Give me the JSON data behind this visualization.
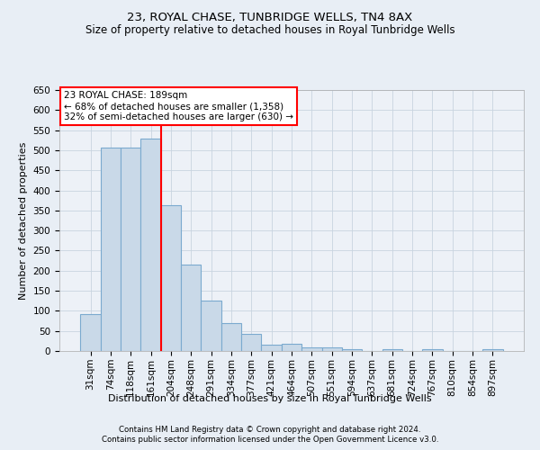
{
  "title": "23, ROYAL CHASE, TUNBRIDGE WELLS, TN4 8AX",
  "subtitle": "Size of property relative to detached houses in Royal Tunbridge Wells",
  "xlabel": "Distribution of detached houses by size in Royal Tunbridge Wells",
  "ylabel": "Number of detached properties",
  "footer_line1": "Contains HM Land Registry data © Crown copyright and database right 2024.",
  "footer_line2": "Contains public sector information licensed under the Open Government Licence v3.0.",
  "categories": [
    "31sqm",
    "74sqm",
    "118sqm",
    "161sqm",
    "204sqm",
    "248sqm",
    "291sqm",
    "334sqm",
    "377sqm",
    "421sqm",
    "464sqm",
    "507sqm",
    "551sqm",
    "594sqm",
    "637sqm",
    "681sqm",
    "724sqm",
    "767sqm",
    "810sqm",
    "854sqm",
    "897sqm"
  ],
  "values": [
    93,
    507,
    507,
    530,
    363,
    215,
    125,
    70,
    43,
    15,
    19,
    10,
    10,
    5,
    0,
    5,
    0,
    5,
    0,
    0,
    5
  ],
  "bar_color": "#c9d9e8",
  "bar_edgecolor": "#7baacf",
  "bar_linewidth": 0.8,
  "vline_color": "red",
  "vline_x": 3.5,
  "annotation_text_line1": "23 ROYAL CHASE: 189sqm",
  "annotation_text_line2": "← 68% of detached houses are smaller (1,358)",
  "annotation_text_line3": "32% of semi-detached houses are larger (630) →",
  "annotation_fontsize": 7.5,
  "annotation_box_edgecolor": "red",
  "annotation_box_facecolor": "white",
  "ylim": [
    0,
    650
  ],
  "yticks": [
    0,
    50,
    100,
    150,
    200,
    250,
    300,
    350,
    400,
    450,
    500,
    550,
    600,
    650
  ],
  "title_fontsize": 9.5,
  "subtitle_fontsize": 8.5,
  "xlabel_fontsize": 8,
  "ylabel_fontsize": 8,
  "tick_fontsize": 7.5,
  "grid_color": "#c8d4e0",
  "background_color": "#e8eef5",
  "plot_bg_color": "#edf1f7"
}
